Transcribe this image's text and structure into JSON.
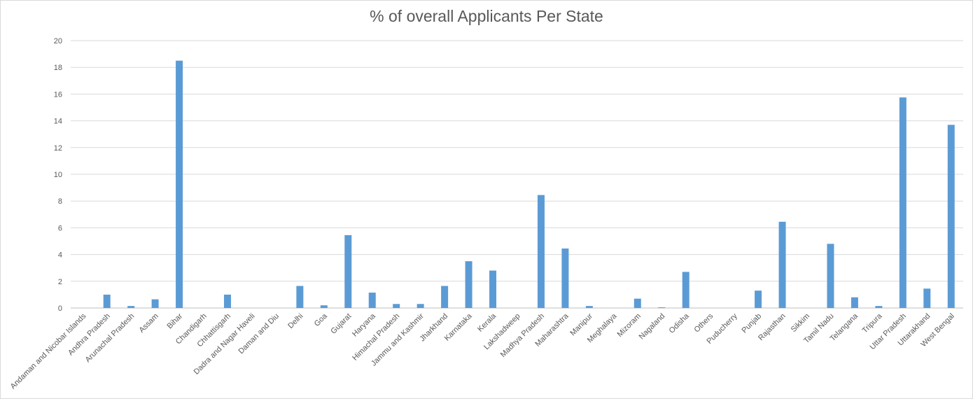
{
  "colors": {
    "bar": "#5b9bd5",
    "grid": "#d9d9d9",
    "text": "#595959"
  },
  "chart_data": {
    "type": "bar",
    "title": "% of overall Applicants Per State",
    "xlabel": "",
    "ylabel": "",
    "ylim": [
      0,
      20
    ],
    "yticks": [
      0,
      2,
      4,
      6,
      8,
      10,
      12,
      14,
      16,
      18,
      20
    ],
    "grid": true,
    "legend": "none",
    "categories": [
      "Andaman and Nicobar Islands",
      "Andhra Pradesh",
      "Arunachal Pradesh",
      "Assam",
      "Bihar",
      "Chandigarh",
      "Chhattisgarh",
      "Dadra and Nagar Haveli",
      "Daman and Diu",
      "Delhi",
      "Goa",
      "Gujarat",
      "Haryana",
      "Himachal Pradesh",
      "Jammu and Kashmir",
      "Jharkhand",
      "Karnataka",
      "Kerala",
      "Lakshadweep",
      "Madhya Pradesh",
      "Maharashtra",
      "Manipur",
      "Meghalaya",
      "Mizoram",
      "Nagaland",
      "Odisha",
      "Others",
      "Puducherry",
      "Punjab",
      "Rajasthan",
      "Sikkim",
      "Tamil Nadu",
      "Telangana",
      "Tripura",
      "Uttar Pradesh",
      "Uttarakhand",
      "West Bengal"
    ],
    "values": [
      0,
      1.0,
      0.15,
      0.65,
      18.5,
      0,
      1.0,
      0,
      0,
      1.65,
      0.2,
      5.45,
      1.15,
      0.3,
      0.3,
      1.65,
      3.5,
      2.8,
      0,
      8.45,
      4.45,
      0.15,
      0,
      0.7,
      0.05,
      2.7,
      0,
      0,
      1.3,
      6.45,
      0,
      4.8,
      0.8,
      0.15,
      15.75,
      1.45,
      13.7
    ]
  }
}
